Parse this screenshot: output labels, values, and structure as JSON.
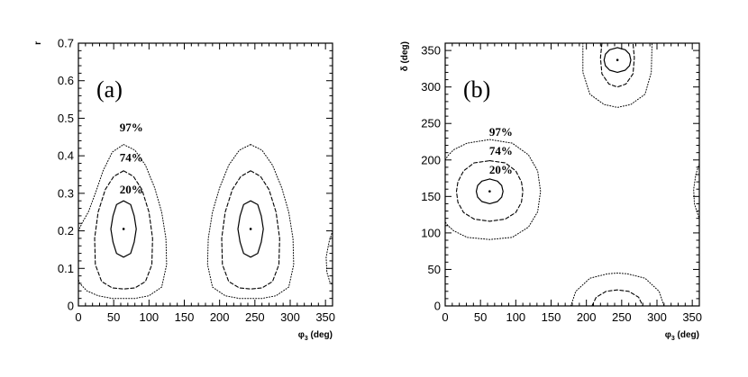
{
  "chart_data": [
    {
      "type": "contour",
      "panel_label": "(a)",
      "xlabel": "φ",
      "xlabel_sub": "3",
      "xlabel_unit": "(deg)",
      "ylabel": "r",
      "xlim": [
        0,
        360
      ],
      "ylim": [
        0,
        0.7
      ],
      "xticks": [
        "0",
        "50",
        "100",
        "150",
        "200",
        "250",
        "300",
        "350"
      ],
      "yticks": [
        "0",
        "0.1",
        "0.2",
        "0.3",
        "0.4",
        "0.5",
        "0.6",
        "0.7"
      ],
      "contour_labels": [
        {
          "text": "97%",
          "x": 75,
          "y": 0.465
        },
        {
          "text": "74%",
          "x": 75,
          "y": 0.385
        },
        {
          "text": "20%",
          "x": 75,
          "y": 0.3
        }
      ],
      "minima": [
        {
          "x": 64,
          "y": 0.205
        },
        {
          "x": 244,
          "y": 0.205
        }
      ],
      "contours": [
        {
          "level": "20%",
          "style": "solid",
          "points": [
            [
              64,
              0.28
            ],
            [
              74,
              0.27
            ],
            [
              79,
              0.24
            ],
            [
              82,
              0.205
            ],
            [
              79,
              0.17
            ],
            [
              74,
              0.14
            ],
            [
              64,
              0.13
            ],
            [
              54,
              0.14
            ],
            [
              49,
              0.17
            ],
            [
              46,
              0.205
            ],
            [
              49,
              0.24
            ],
            [
              54,
              0.27
            ],
            [
              64,
              0.28
            ]
          ]
        },
        {
          "level": "74%",
          "style": "dashed",
          "points": [
            [
              64,
              0.36
            ],
            [
              78,
              0.345
            ],
            [
              90,
              0.31
            ],
            [
              100,
              0.25
            ],
            [
              105,
              0.18
            ],
            [
              104,
              0.11
            ],
            [
              95,
              0.065
            ],
            [
              80,
              0.048
            ],
            [
              64,
              0.045
            ],
            [
              48,
              0.048
            ],
            [
              33,
              0.065
            ],
            [
              24,
              0.11
            ],
            [
              23,
              0.18
            ],
            [
              28,
              0.25
            ],
            [
              38,
              0.31
            ],
            [
              50,
              0.345
            ],
            [
              64,
              0.36
            ]
          ]
        },
        {
          "level": "97%",
          "style": "dotted",
          "points": [
            [
              64,
              0.43
            ],
            [
              80,
              0.415
            ],
            [
              95,
              0.375
            ],
            [
              108,
              0.315
            ],
            [
              118,
              0.25
            ],
            [
              124,
              0.18
            ],
            [
              125,
              0.11
            ],
            [
              118,
              0.05
            ],
            [
              100,
              0.027
            ],
            [
              80,
              0.02
            ],
            [
              64,
              0.02
            ],
            [
              48,
              0.02
            ],
            [
              28,
              0.027
            ],
            [
              12,
              0.04
            ],
            [
              2,
              0.06
            ],
            [
              0,
              0.07
            ]
          ]
        },
        {
          "level": "97%",
          "style": "dotted",
          "points": [
            [
              0,
              0.2
            ],
            [
              5,
              0.22
            ],
            [
              14,
              0.25
            ],
            [
              24,
              0.3
            ],
            [
              35,
              0.36
            ],
            [
              48,
              0.41
            ],
            [
              64,
              0.43
            ]
          ]
        },
        {
          "level": "20%",
          "style": "solid",
          "points": [
            [
              244,
              0.28
            ],
            [
              254,
              0.27
            ],
            [
              259,
              0.24
            ],
            [
              262,
              0.205
            ],
            [
              259,
              0.17
            ],
            [
              254,
              0.14
            ],
            [
              244,
              0.13
            ],
            [
              234,
              0.14
            ],
            [
              229,
              0.17
            ],
            [
              226,
              0.205
            ],
            [
              229,
              0.24
            ],
            [
              234,
              0.27
            ],
            [
              244,
              0.28
            ]
          ]
        },
        {
          "level": "74%",
          "style": "dashed",
          "points": [
            [
              244,
              0.36
            ],
            [
              258,
              0.345
            ],
            [
              270,
              0.31
            ],
            [
              280,
              0.25
            ],
            [
              285,
              0.18
            ],
            [
              284,
              0.11
            ],
            [
              275,
              0.065
            ],
            [
              260,
              0.048
            ],
            [
              244,
              0.045
            ],
            [
              228,
              0.048
            ],
            [
              213,
              0.065
            ],
            [
              204,
              0.11
            ],
            [
              203,
              0.18
            ],
            [
              208,
              0.25
            ],
            [
              218,
              0.31
            ],
            [
              230,
              0.345
            ],
            [
              244,
              0.36
            ]
          ]
        },
        {
          "level": "97%",
          "style": "dotted",
          "points": [
            [
              244,
              0.43
            ],
            [
              260,
              0.415
            ],
            [
              275,
              0.375
            ],
            [
              288,
              0.315
            ],
            [
              298,
              0.25
            ],
            [
              304,
              0.18
            ],
            [
              305,
              0.11
            ],
            [
              298,
              0.05
            ],
            [
              280,
              0.027
            ],
            [
              260,
              0.02
            ],
            [
              244,
              0.02
            ],
            [
              228,
              0.02
            ],
            [
              208,
              0.027
            ],
            [
              190,
              0.05
            ],
            [
              183,
              0.11
            ],
            [
              184,
              0.18
            ],
            [
              190,
              0.25
            ],
            [
              200,
              0.315
            ],
            [
              213,
              0.375
            ],
            [
              228,
              0.415
            ],
            [
              244,
              0.43
            ]
          ]
        },
        {
          "level": "97%",
          "style": "dotted",
          "points": [
            [
              360,
              0.2
            ],
            [
              355,
              0.17
            ],
            [
              351,
              0.13
            ],
            [
              352,
              0.09
            ],
            [
              356,
              0.065
            ],
            [
              360,
              0.055
            ]
          ]
        }
      ]
    },
    {
      "type": "contour",
      "panel_label": "(b)",
      "xlabel": "φ",
      "xlabel_sub": "3",
      "xlabel_unit": "(deg)",
      "ylabel": "δ (deg)",
      "xlim": [
        0,
        360
      ],
      "ylim": [
        0,
        360
      ],
      "xticks": [
        "0",
        "50",
        "100",
        "150",
        "200",
        "250",
        "300",
        "350"
      ],
      "yticks": [
        "0",
        "50",
        "100",
        "150",
        "200",
        "250",
        "300",
        "350"
      ],
      "contour_labels": [
        {
          "text": "97%",
          "x": 79,
          "y": 233
        },
        {
          "text": "74%",
          "x": 79,
          "y": 207
        },
        {
          "text": "20%",
          "x": 79,
          "y": 181
        }
      ],
      "minima": [
        {
          "x": 63,
          "y": 157
        },
        {
          "x": 244,
          "y": 337
        }
      ],
      "contours": [
        {
          "level": "20%",
          "style": "solid",
          "points": [
            [
              63,
              174
            ],
            [
              74,
              171
            ],
            [
              80,
              165
            ],
            [
              82,
              157
            ],
            [
              80,
              149
            ],
            [
              74,
              143
            ],
            [
              63,
              140
            ],
            [
              52,
              143
            ],
            [
              46,
              149
            ],
            [
              44,
              157
            ],
            [
              46,
              165
            ],
            [
              52,
              171
            ],
            [
              63,
              174
            ]
          ]
        },
        {
          "level": "74%",
          "style": "dashed",
          "points": [
            [
              63,
              199
            ],
            [
              85,
              196
            ],
            [
              100,
              185
            ],
            [
              108,
              170
            ],
            [
              110,
              157
            ],
            [
              108,
              142
            ],
            [
              100,
              128
            ],
            [
              85,
              119
            ],
            [
              63,
              116
            ],
            [
              41,
              119
            ],
            [
              26,
              128
            ],
            [
              18,
              142
            ],
            [
              16,
              157
            ],
            [
              18,
              170
            ],
            [
              26,
              185
            ],
            [
              41,
              196
            ],
            [
              63,
              199
            ]
          ]
        },
        {
          "level": "97%",
          "style": "dotted",
          "points": [
            [
              63,
              228
            ],
            [
              95,
              223
            ],
            [
              118,
              207
            ],
            [
              131,
              185
            ],
            [
              135,
              157
            ],
            [
              131,
              129
            ],
            [
              118,
              108
            ],
            [
              95,
              94
            ],
            [
              63,
              91
            ],
            [
              31,
              94
            ],
            [
              12,
              103
            ],
            [
              4,
              110
            ],
            [
              0,
              115
            ]
          ]
        },
        {
          "level": "97%",
          "style": "dotted",
          "points": [
            [
              0,
              200
            ],
            [
              4,
              206
            ],
            [
              12,
              214
            ],
            [
              31,
              223
            ],
            [
              63,
              228
            ]
          ]
        },
        {
          "level": "20%",
          "style": "solid",
          "points": [
            [
              244,
              354
            ],
            [
              255,
              351
            ],
            [
              261,
              345
            ],
            [
              263,
              337
            ],
            [
              261,
              329
            ],
            [
              255,
              323
            ],
            [
              244,
              320
            ],
            [
              233,
              323
            ],
            [
              227,
              329
            ],
            [
              225,
              337
            ],
            [
              227,
              345
            ],
            [
              233,
              351
            ],
            [
              244,
              354
            ]
          ]
        },
        {
          "level": "74%",
          "style": "dashed",
          "points": [
            [
              222,
              360
            ],
            [
              220,
              340
            ],
            [
              222,
              318
            ],
            [
              232,
              304
            ],
            [
              244,
              300
            ],
            [
              256,
              304
            ],
            [
              266,
              318
            ],
            [
              268,
              340
            ],
            [
              266,
              360
            ]
          ]
        },
        {
          "level": "97%",
          "style": "dotted",
          "points": [
            [
              195,
              360
            ],
            [
              195,
              320
            ],
            [
              205,
              290
            ],
            [
              225,
              276
            ],
            [
              244,
              272
            ],
            [
              263,
              276
            ],
            [
              283,
              290
            ],
            [
              292,
              320
            ],
            [
              293,
              360
            ]
          ]
        },
        {
          "level": "74%",
          "style": "dashed",
          "points": [
            [
              208,
              0
            ],
            [
              214,
              12
            ],
            [
              228,
              20
            ],
            [
              244,
              22
            ],
            [
              260,
              20
            ],
            [
              274,
              12
            ],
            [
              280,
              0
            ]
          ]
        },
        {
          "level": "97%",
          "style": "dotted",
          "points": [
            [
              178,
              0
            ],
            [
              185,
              20
            ],
            [
              205,
              38
            ],
            [
              230,
              44
            ],
            [
              244,
              45
            ],
            [
              258,
              44
            ],
            [
              283,
              38
            ],
            [
              303,
              20
            ],
            [
              310,
              0
            ]
          ]
        },
        {
          "level": "97%",
          "style": "dotted",
          "points": [
            [
              360,
              195
            ],
            [
              355,
              180
            ],
            [
              352,
              160
            ],
            [
              353,
              140
            ],
            [
              358,
              125
            ],
            [
              360,
              120
            ]
          ]
        }
      ]
    }
  ]
}
